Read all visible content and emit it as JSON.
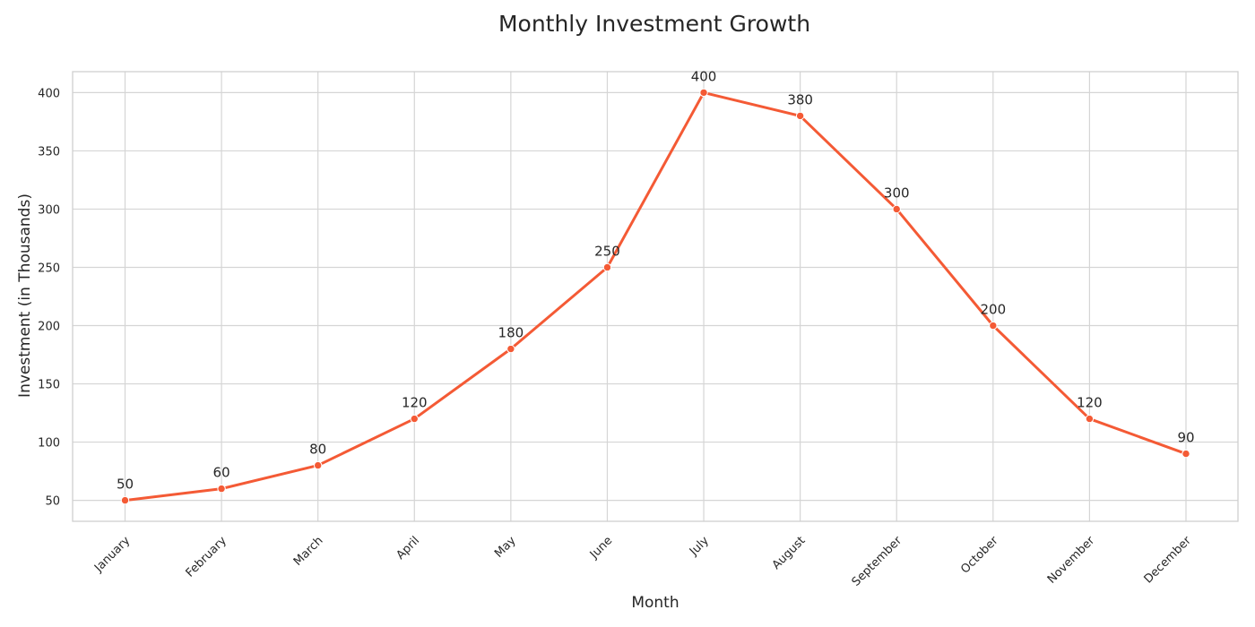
{
  "chart_data": {
    "type": "line",
    "title": "Monthly Investment Growth",
    "xlabel": "Month",
    "ylabel": "Investment (in Thousands)",
    "categories": [
      "January",
      "February",
      "March",
      "April",
      "May",
      "June",
      "July",
      "August",
      "September",
      "October",
      "November",
      "December"
    ],
    "series": [
      {
        "values": [
          50,
          60,
          80,
          120,
          180,
          250,
          400,
          380,
          300,
          200,
          120,
          90
        ],
        "color": "#f45a35"
      }
    ],
    "y_ticks": [
      50,
      100,
      150,
      200,
      250,
      300,
      350,
      400
    ],
    "ylim": [
      32,
      418
    ],
    "grid": true,
    "data_labels": true,
    "marker": "circle",
    "legend": "none"
  }
}
